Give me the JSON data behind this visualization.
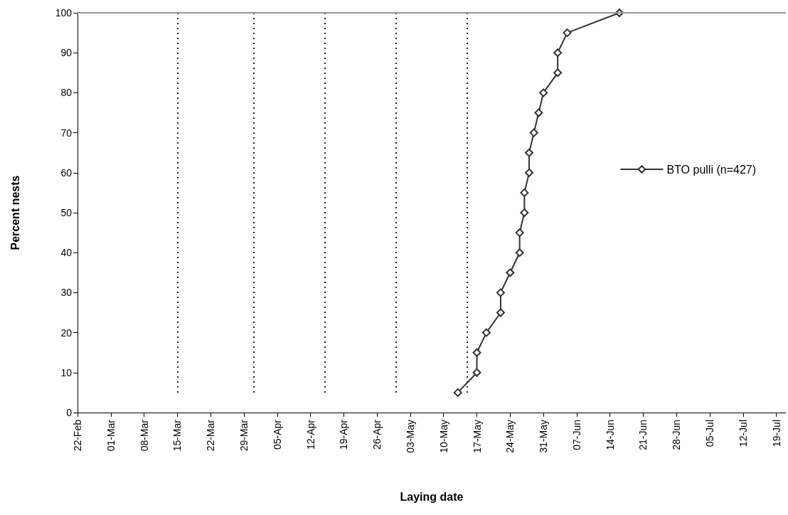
{
  "chart_data": {
    "type": "line",
    "xlabel": "Laying date",
    "ylabel": "Percent nests",
    "series": [
      {
        "name": "BTO pulli (n=427)",
        "color": "#333333",
        "x": [
          "--05-13",
          "--05-17",
          "--05-17",
          "--05-19",
          "--05-22",
          "--05-22",
          "--05-24",
          "--05-26",
          "--05-26",
          "--05-27",
          "--05-27",
          "--05-28",
          "--05-28",
          "--05-29",
          "--05-30",
          "--05-31",
          "--06-03",
          "--06-03",
          "--06-05",
          "--06-16"
        ],
        "values": [
          5,
          10,
          15,
          20,
          25,
          30,
          35,
          40,
          45,
          50,
          55,
          60,
          65,
          70,
          75,
          80,
          85,
          90,
          95,
          100
        ]
      }
    ],
    "marker": "diamond",
    "line_style": "solid",
    "legend": "right",
    "grid": false,
    "xlim": [
      "--02-22",
      "--07-21"
    ],
    "xticks": [
      {
        "value": "--02-22",
        "label": "22-Feb"
      },
      {
        "value": "--03-01",
        "label": "01-Mar"
      },
      {
        "value": "--03-08",
        "label": "08-Mar"
      },
      {
        "value": "--03-15",
        "label": "15-Mar"
      },
      {
        "value": "--03-22",
        "label": "22-Mar"
      },
      {
        "value": "--03-29",
        "label": "29-Mar"
      },
      {
        "value": "--04-05",
        "label": "05-Apr"
      },
      {
        "value": "--04-12",
        "label": "12-Apr"
      },
      {
        "value": "--04-19",
        "label": "19-Apr"
      },
      {
        "value": "--04-26",
        "label": "26-Apr"
      },
      {
        "value": "--05-03",
        "label": "03-May"
      },
      {
        "value": "--05-10",
        "label": "10-May"
      },
      {
        "value": "--05-17",
        "label": "17-May"
      },
      {
        "value": "--05-24",
        "label": "24-May"
      },
      {
        "value": "--05-31",
        "label": "31-May"
      },
      {
        "value": "--06-07",
        "label": "07-Jun"
      },
      {
        "value": "--06-14",
        "label": "14-Jun"
      },
      {
        "value": "--06-21",
        "label": "21-Jun"
      },
      {
        "value": "--06-28",
        "label": "28-Jun"
      },
      {
        "value": "--07-05",
        "label": "05-Jul"
      },
      {
        "value": "--07-12",
        "label": "12-Jul"
      },
      {
        "value": "--07-19",
        "label": "19-Jul"
      }
    ],
    "ylim": [
      0,
      100
    ],
    "yticks": [
      0,
      10,
      20,
      30,
      40,
      50,
      60,
      70,
      80,
      90,
      100
    ],
    "ref_lines": [
      {
        "axis": "x",
        "value": "--03-15",
        "line_style": "dotted",
        "color": "#222222"
      },
      {
        "axis": "x",
        "value": "--03-31",
        "line_style": "dotted",
        "color": "#222222"
      },
      {
        "axis": "x",
        "value": "--04-15",
        "line_style": "dotted",
        "color": "#222222"
      },
      {
        "axis": "x",
        "value": "--04-30",
        "line_style": "dotted",
        "color": "#222222"
      },
      {
        "axis": "x",
        "value": "--05-15",
        "line_style": "dotted",
        "color": "#222222"
      },
      {
        "axis": "y",
        "value": 100,
        "line_style": "solid",
        "color": "#999999"
      }
    ]
  }
}
